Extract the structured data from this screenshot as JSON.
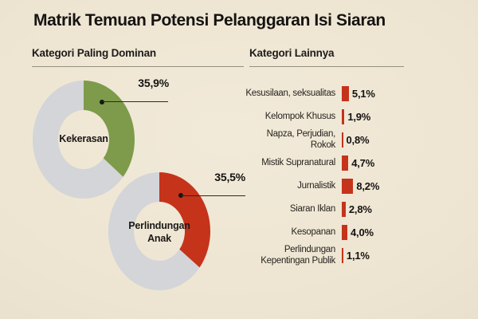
{
  "title": "Matrik Temuan Potensi Pelanggaran Isi Siaran",
  "sections": {
    "dominant": {
      "heading": "Kategori Paling Dominan"
    },
    "others": {
      "heading": "Kategori Lainnya"
    }
  },
  "colors": {
    "background": "#ece4d1",
    "green": "#7d9b4a",
    "red": "#c5331b",
    "ring_gray": "#d3d5d8",
    "text": "#1d1c1a"
  },
  "chart_data": [
    {
      "type": "pie",
      "variant": "donut",
      "label": "Kekerasan",
      "value": 35.9,
      "value_display": "35,9%",
      "slice_color": "#7d9b4a",
      "remainder_value": 64.1,
      "remainder_color": "#d3d5d8",
      "start_angle_deg": 0,
      "direction": "clockwise"
    },
    {
      "type": "pie",
      "variant": "donut",
      "label": "Perlindungan Anak",
      "value": 35.5,
      "value_display": "35,5%",
      "slice_color": "#c5331b",
      "remainder_value": 64.5,
      "remainder_color": "#d3d5d8",
      "start_angle_deg": 0,
      "direction": "clockwise"
    },
    {
      "type": "bar",
      "orientation": "horizontal",
      "unit": "percent",
      "bar_color": "#c5331b",
      "categories": [
        "Kesusilaan, seksualitas",
        "Kelompok Khusus",
        "Napza, Perjudian, Rokok",
        "Mistik Supranatural",
        "Jurnalistik",
        "Siaran Iklan",
        "Kesopanan",
        "Perlindungan Kepentingan Publik"
      ],
      "values": [
        5.1,
        1.9,
        0.8,
        4.7,
        8.2,
        2.8,
        4.0,
        1.1
      ],
      "value_labels": [
        "5,1%",
        "1,9%",
        "0,8%",
        "4,7%",
        "8,2%",
        "2,8%",
        "4,0%",
        "1,1%"
      ]
    }
  ]
}
